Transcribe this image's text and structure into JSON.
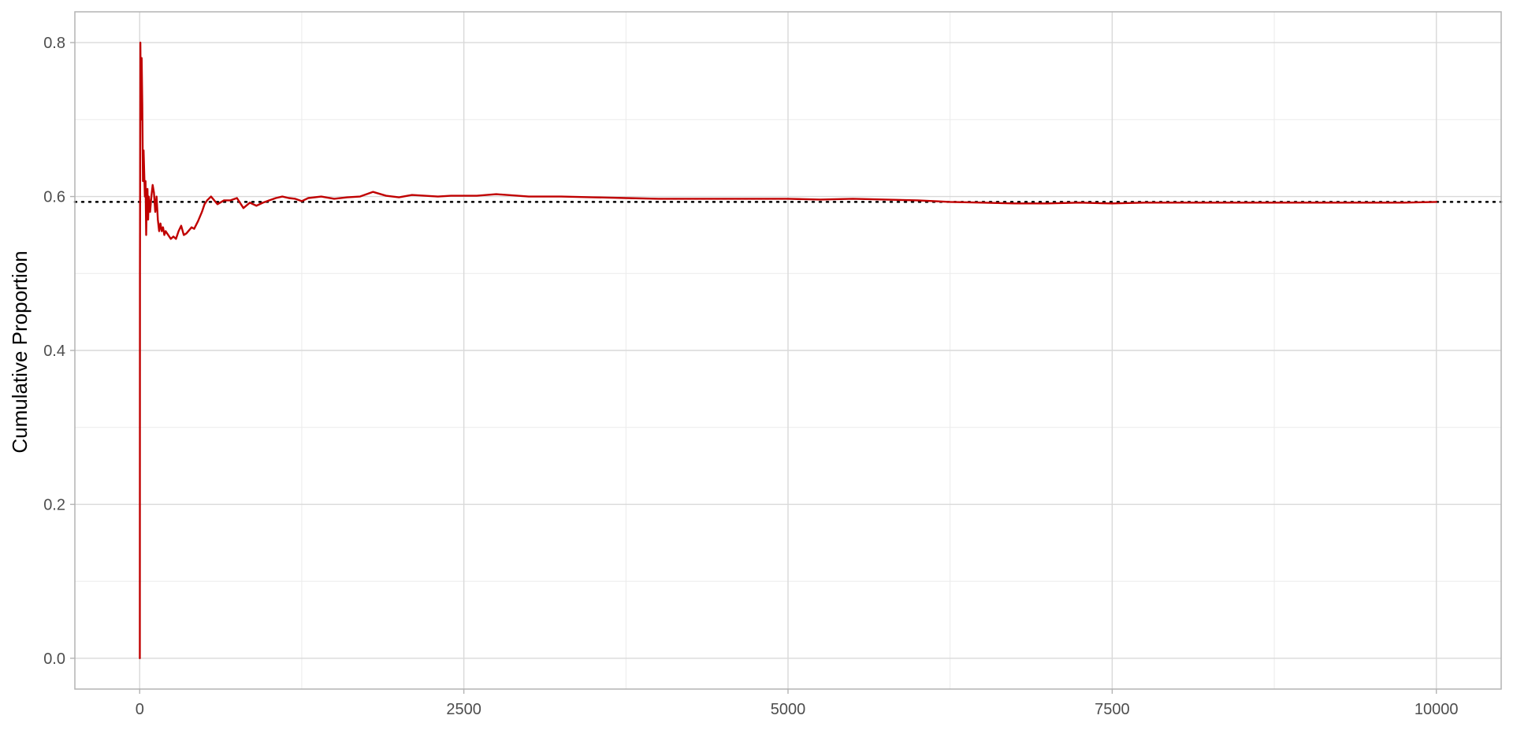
{
  "chart_data": {
    "type": "line",
    "title": "",
    "xlabel": "",
    "ylabel": "Cumulative Proportion",
    "xlim": [
      -500,
      10500
    ],
    "ylim": [
      -0.04,
      0.84
    ],
    "x_ticks": [
      0,
      2500,
      5000,
      7500,
      10000
    ],
    "x_tick_labels": [
      "0",
      "2500",
      "5000",
      "7500",
      "10000"
    ],
    "x_minor_ticks": [
      1250,
      3750,
      6250,
      8750
    ],
    "y_ticks": [
      0.0,
      0.2,
      0.4,
      0.6,
      0.8
    ],
    "y_tick_labels": [
      "0.0",
      "0.2",
      "0.4",
      "0.6",
      "0.8"
    ],
    "y_minor_ticks": [
      0.1,
      0.3,
      0.5,
      0.7
    ],
    "grid": true,
    "legend": "none",
    "reference_line": {
      "y": 0.593,
      "style": "dotted",
      "color": "#000000"
    },
    "series": [
      {
        "color": "#c00000",
        "x": [
          1,
          2,
          5,
          10,
          15,
          20,
          25,
          30,
          40,
          45,
          50,
          55,
          60,
          65,
          70,
          80,
          90,
          100,
          110,
          120,
          130,
          140,
          150,
          160,
          170,
          180,
          190,
          200,
          220,
          240,
          260,
          280,
          300,
          320,
          340,
          360,
          380,
          400,
          420,
          450,
          480,
          500,
          520,
          550,
          600,
          650,
          700,
          750,
          800,
          850,
          900,
          950,
          1000,
          1050,
          1100,
          1150,
          1200,
          1250,
          1300,
          1400,
          1500,
          1600,
          1700,
          1800,
          1900,
          2000,
          2100,
          2200,
          2300,
          2400,
          2500,
          2600,
          2750,
          3000,
          3250,
          3500,
          3750,
          4000,
          4250,
          4500,
          4750,
          5000,
          5250,
          5500,
          5750,
          6000,
          6250,
          6500,
          6750,
          7000,
          7250,
          7500,
          7750,
          8000,
          8250,
          8500,
          8750,
          9000,
          9250,
          9500,
          9750,
          10000
        ],
        "y": [
          0.0,
          0.5,
          0.8,
          0.7,
          0.78,
          0.72,
          0.62,
          0.66,
          0.6,
          0.62,
          0.55,
          0.6,
          0.61,
          0.57,
          0.6,
          0.58,
          0.6,
          0.615,
          0.605,
          0.58,
          0.6,
          0.57,
          0.555,
          0.565,
          0.555,
          0.56,
          0.55,
          0.555,
          0.55,
          0.545,
          0.548,
          0.545,
          0.555,
          0.562,
          0.55,
          0.552,
          0.556,
          0.56,
          0.558,
          0.568,
          0.58,
          0.59,
          0.595,
          0.6,
          0.59,
          0.595,
          0.595,
          0.598,
          0.585,
          0.592,
          0.588,
          0.592,
          0.595,
          0.598,
          0.6,
          0.598,
          0.597,
          0.594,
          0.598,
          0.6,
          0.597,
          0.599,
          0.6,
          0.606,
          0.601,
          0.599,
          0.602,
          0.601,
          0.6,
          0.601,
          0.601,
          0.601,
          0.603,
          0.6,
          0.6,
          0.599,
          0.598,
          0.597,
          0.597,
          0.597,
          0.597,
          0.597,
          0.596,
          0.597,
          0.596,
          0.595,
          0.593,
          0.592,
          0.591,
          0.591,
          0.592,
          0.591,
          0.592,
          0.592,
          0.592,
          0.592,
          0.592,
          0.592,
          0.592,
          0.592,
          0.592,
          0.593
        ]
      }
    ]
  }
}
